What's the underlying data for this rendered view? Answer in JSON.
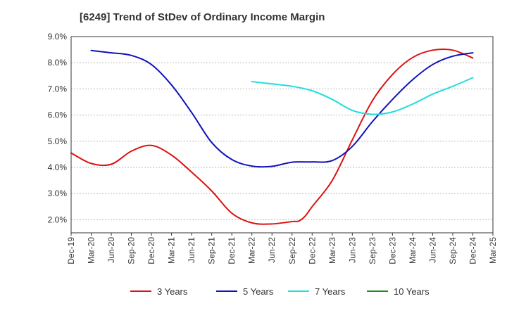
{
  "chart_data": {
    "type": "line",
    "title": "[6249]  Trend of StDev of Ordinary Income Margin",
    "xlabel": "",
    "ylabel": "",
    "x_ticks": [
      "Dec-19",
      "Mar-20",
      "Jun-20",
      "Sep-20",
      "Dec-20",
      "Mar-21",
      "Jun-21",
      "Sep-21",
      "Dec-21",
      "Mar-22",
      "Jun-22",
      "Sep-22",
      "Dec-22",
      "Mar-23",
      "Jun-23",
      "Sep-23",
      "Dec-23",
      "Mar-24",
      "Jun-24",
      "Sep-24",
      "Dec-24",
      "Mar-25"
    ],
    "y_ticks": [
      "2.0%",
      "3.0%",
      "4.0%",
      "5.0%",
      "6.0%",
      "7.0%",
      "8.0%",
      "9.0%"
    ],
    "y_tick_values": [
      2.0,
      3.0,
      4.0,
      5.0,
      6.0,
      7.0,
      8.0,
      9.0
    ],
    "ylim": [
      1.5,
      9.0
    ],
    "grid": true,
    "legend_position": "bottom",
    "series": [
      {
        "name": "3 Years",
        "color": "#dd1111",
        "x": [
          "Dec-19",
          "Mar-20",
          "Jun-20",
          "Sep-20",
          "Dec-20",
          "Mar-21",
          "Jun-21",
          "Sep-21",
          "Dec-21",
          "Mar-22",
          "Jun-22",
          "Sep-22",
          "Oct-22",
          "Nov-22",
          "Dec-22",
          "Mar-23",
          "Jun-23",
          "Sep-23",
          "Dec-23",
          "Mar-24",
          "Jun-24",
          "Sep-24",
          "Dec-24"
        ],
        "values": [
          4.55,
          4.15,
          4.12,
          4.62,
          4.84,
          4.47,
          3.82,
          3.1,
          2.25,
          1.88,
          1.84,
          1.93,
          1.95,
          2.15,
          2.5,
          3.5,
          5.05,
          6.55,
          7.55,
          8.2,
          8.48,
          8.48,
          8.18
        ]
      },
      {
        "name": "5 Years",
        "color": "#1111bb",
        "x": [
          "Mar-20",
          "Jun-20",
          "Sep-20",
          "Dec-20",
          "Mar-21",
          "Jun-21",
          "Sep-21",
          "Dec-21",
          "Mar-22",
          "Jun-22",
          "Sep-22",
          "Dec-22",
          "Mar-23",
          "Jun-23",
          "Sep-23",
          "Dec-23",
          "Mar-24",
          "Jun-24",
          "Sep-24",
          "Dec-24"
        ],
        "values": [
          8.47,
          8.38,
          8.28,
          7.93,
          7.15,
          6.1,
          4.95,
          4.3,
          4.05,
          4.04,
          4.2,
          4.21,
          4.26,
          4.8,
          5.75,
          6.6,
          7.35,
          7.93,
          8.25,
          8.38
        ]
      },
      {
        "name": "7 Years",
        "color": "#22dddd",
        "x": [
          "Mar-22",
          "Jun-22",
          "Sep-22",
          "Dec-22",
          "Mar-23",
          "Jun-23",
          "Sep-23",
          "Dec-23",
          "Mar-24",
          "Jun-24",
          "Sep-24",
          "Dec-24"
        ],
        "values": [
          7.28,
          7.19,
          7.1,
          6.93,
          6.6,
          6.18,
          6.03,
          6.12,
          6.42,
          6.8,
          7.1,
          7.43
        ]
      },
      {
        "name": "10 Years",
        "color": "#228822",
        "x": [],
        "values": []
      }
    ]
  }
}
